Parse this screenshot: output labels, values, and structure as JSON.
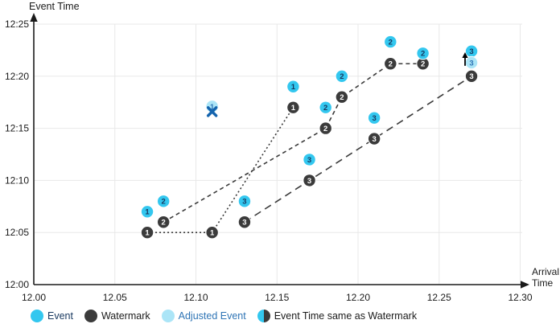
{
  "chart_data": {
    "type": "scatter",
    "title": "",
    "xlabel": "Arrival Time",
    "ylabel": "Event Time",
    "x_axis": {
      "labels": [
        "12.00",
        "12.05",
        "12.10",
        "12.15",
        "12.20",
        "12.25",
        "12.30"
      ],
      "values": [
        12.0,
        12.05,
        12.1,
        12.15,
        12.2,
        12.25,
        12.3
      ]
    },
    "y_axis": {
      "labels": [
        "12:00",
        "12:05",
        "12:10",
        "12:15",
        "12:20",
        "12:25"
      ],
      "values": [
        0,
        5,
        10,
        15,
        20,
        25
      ]
    },
    "grid": "on",
    "legend_position": "bottom",
    "series": [
      {
        "id": "1",
        "line_dash": "2 3",
        "events": [
          {
            "arrival": 12.07,
            "event_min": 7,
            "event_time": "12:07"
          },
          {
            "arrival": 12.16,
            "event_min": 19,
            "event_time": "12:19"
          }
        ],
        "watermarks": [
          {
            "arrival": 12.07,
            "event_min": 5,
            "event_time": "12:05"
          },
          {
            "arrival": 12.11,
            "event_min": 5,
            "event_time": "12:05"
          },
          {
            "arrival": 12.16,
            "event_min": 17,
            "event_time": "12:17"
          }
        ],
        "adjusted_events": [
          {
            "arrival": 12.11,
            "event_min": 17.1,
            "event_time": "12:17"
          }
        ]
      },
      {
        "id": "2",
        "line_dash": "5 4",
        "events": [
          {
            "arrival": 12.08,
            "event_min": 8,
            "event_time": "12:08"
          },
          {
            "arrival": 12.18,
            "event_min": 17,
            "event_time": "12:17"
          },
          {
            "arrival": 12.19,
            "event_min": 20,
            "event_time": "12:20"
          },
          {
            "arrival": 12.22,
            "event_min": 23.3,
            "event_time": "12:23"
          },
          {
            "arrival": 12.24,
            "event_min": 22.2,
            "event_time": "12:22"
          }
        ],
        "watermarks": [
          {
            "arrival": 12.08,
            "event_min": 6,
            "event_time": "12:06"
          },
          {
            "arrival": 12.18,
            "event_min": 15,
            "event_time": "12:15"
          },
          {
            "arrival": 12.19,
            "event_min": 18,
            "event_time": "12:18"
          },
          {
            "arrival": 12.22,
            "event_min": 21.2,
            "event_time": "12:21"
          },
          {
            "arrival": 12.24,
            "event_min": 21.2,
            "event_time": "12:21"
          }
        ],
        "adjusted_events": []
      },
      {
        "id": "3",
        "line_dash": "9 6",
        "events": [
          {
            "arrival": 12.13,
            "event_min": 8,
            "event_time": "12:08"
          },
          {
            "arrival": 12.17,
            "event_min": 12,
            "event_time": "12:12"
          },
          {
            "arrival": 12.21,
            "event_min": 16,
            "event_time": "12:16"
          },
          {
            "arrival": 12.27,
            "event_min": 22.4,
            "event_time": "12:22"
          }
        ],
        "watermarks": [
          {
            "arrival": 12.13,
            "event_min": 6,
            "event_time": "12:06"
          },
          {
            "arrival": 12.17,
            "event_min": 10,
            "event_time": "12:10"
          },
          {
            "arrival": 12.21,
            "event_min": 14,
            "event_time": "12:14"
          },
          {
            "arrival": 12.27,
            "event_min": 20,
            "event_time": "12:20"
          }
        ],
        "adjusted_events": [
          {
            "arrival": 12.27,
            "event_min": 21.3,
            "event_time": "12:21"
          }
        ]
      }
    ],
    "annotations": [
      {
        "type": "x-marker",
        "arrival": 12.11,
        "event_min": 16.6
      },
      {
        "type": "up-arrow",
        "arrival": 12.266,
        "tip_min": 22.3,
        "tail_min": 21.0
      }
    ],
    "legend": [
      {
        "label": "Event",
        "swatch": "event",
        "text_color": "#17375E"
      },
      {
        "label": "Watermark",
        "swatch": "watermark",
        "text_color": "#1A1A1A"
      },
      {
        "label": "Adjusted Event",
        "swatch": "adjusted",
        "text_color": "#2E74B5"
      },
      {
        "label": "Event Time same as Watermark",
        "swatch": "half",
        "text_color": "#1A1A1A"
      }
    ],
    "colors": {
      "event": "#33C7EF",
      "watermark": "#3B3B3B",
      "adjusted": "#ABE5F7",
      "event_number": "#17375E",
      "watermark_number": "#FFFFFF",
      "adjusted_number": "#2E74B5",
      "line": "#3B3B3B",
      "grid": "#E8E8E8",
      "axis": "#1A1A1A",
      "text": "#1A1A1A",
      "x_marker": "#1464AE",
      "up_arrow": "#000000"
    }
  }
}
